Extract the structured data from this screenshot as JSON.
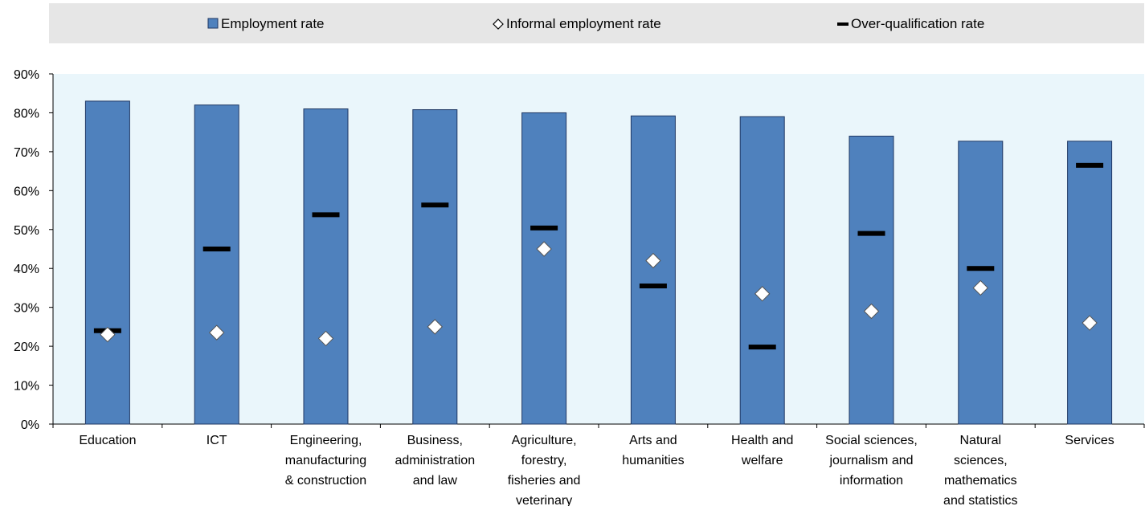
{
  "legend": {
    "employment": "Employment rate",
    "informal": "Informal employment rate",
    "overqual": "Over-qualification rate"
  },
  "colors": {
    "bar_fill": "#4f81bd",
    "bar_stroke": "#1f3763",
    "plot_bg": "#eaf6fb",
    "legend_bg": "#e6e6e6",
    "marker": "#000000",
    "diamond_fill": "#ffffff"
  },
  "chart_data": {
    "type": "bar",
    "categories": [
      [
        "Education"
      ],
      [
        "ICT"
      ],
      [
        "Engineering,",
        "manufacturing",
        "& construction"
      ],
      [
        "Business,",
        "administration",
        "and law"
      ],
      [
        "Agriculture,",
        "forestry,",
        "fisheries and",
        "veterinary"
      ],
      [
        "Arts and",
        "humanities"
      ],
      [
        "Health and",
        "welfare"
      ],
      [
        "Social sciences,",
        "journalism and",
        "information"
      ],
      [
        "Natural",
        "sciences,",
        "mathematics",
        "and statistics"
      ],
      [
        "Services"
      ]
    ],
    "series": [
      {
        "name": "Employment rate",
        "type": "bar",
        "values": [
          83,
          82,
          81,
          80.8,
          80,
          79.2,
          79,
          74,
          72.7,
          72.7
        ]
      },
      {
        "name": "Informal employment rate",
        "type": "marker-diamond",
        "values": [
          23,
          23.5,
          22,
          25,
          45,
          42,
          33.5,
          29,
          35,
          26
        ]
      },
      {
        "name": "Over-qualification rate",
        "type": "marker-dash",
        "values": [
          24,
          45,
          53.8,
          56.3,
          50.4,
          35.5,
          19.8,
          49,
          40,
          66.5
        ]
      }
    ],
    "ylim": [
      0,
      90
    ],
    "yticks": [
      "0%",
      "10%",
      "20%",
      "30%",
      "40%",
      "50%",
      "60%",
      "70%",
      "80%",
      "90%"
    ],
    "xlabel": "",
    "ylabel": "",
    "grid": false,
    "legend_position": "top"
  }
}
